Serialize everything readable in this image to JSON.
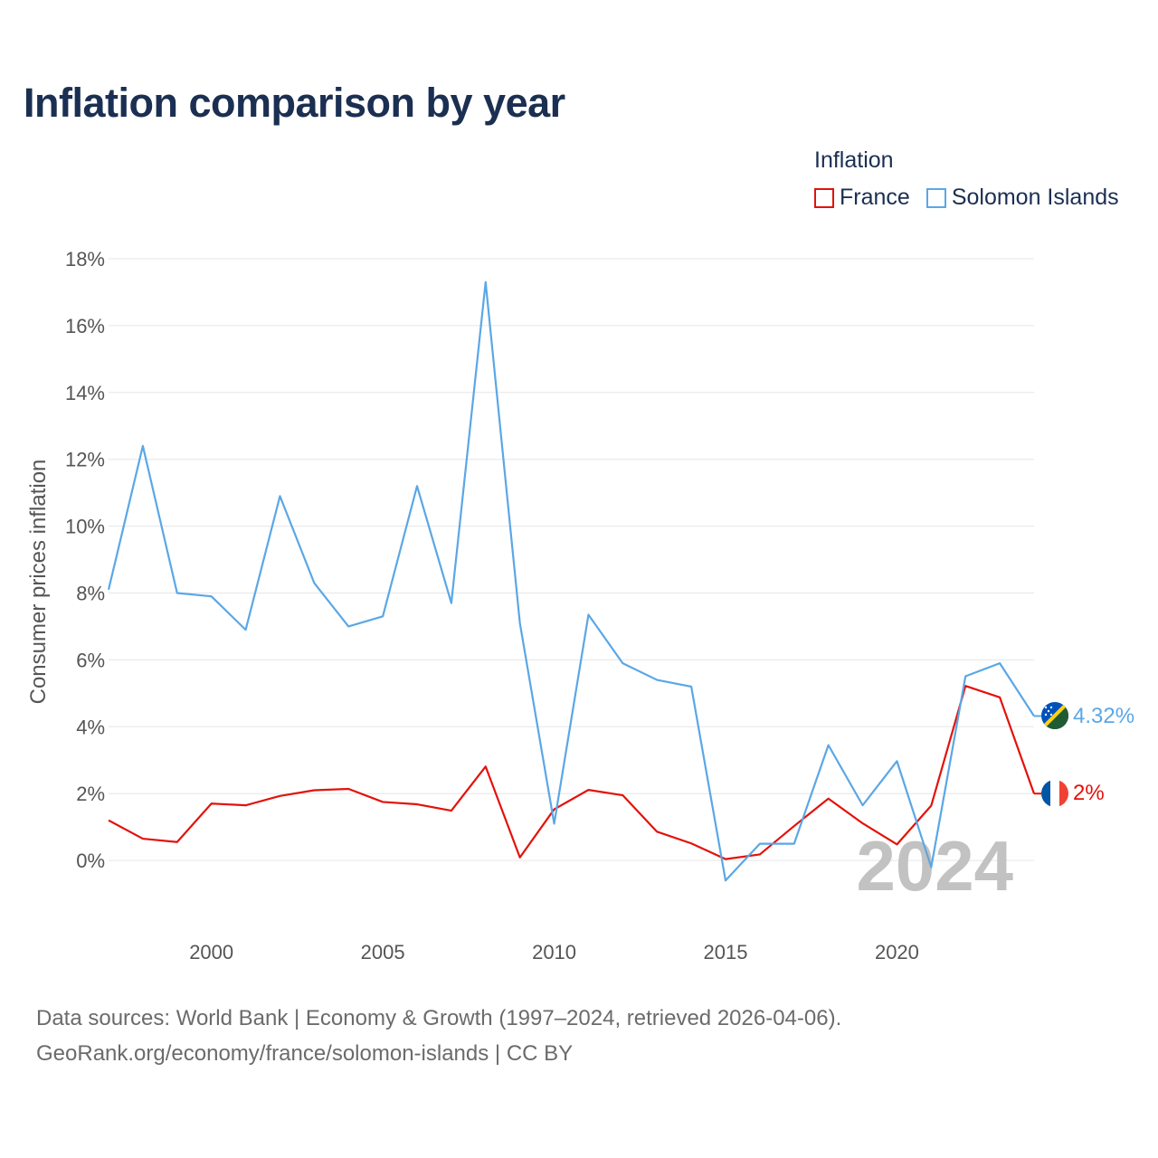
{
  "header": {
    "title": "Inflation comparison by year"
  },
  "legend": {
    "title": "Inflation"
  },
  "footer": {
    "line1": "Data sources: World Bank | Economy & Growth (1997–2024, retrieved 2026-04-06).",
    "line2": "GeoRank.org/economy/france/solomon-islands | CC BY"
  },
  "chart_data": {
    "type": "line",
    "title": "Inflation comparison by year",
    "xlabel": "",
    "ylabel": "Consumer prices inflation",
    "x": [
      1997,
      1998,
      1999,
      2000,
      2001,
      2002,
      2003,
      2004,
      2005,
      2006,
      2007,
      2008,
      2009,
      2010,
      2011,
      2012,
      2013,
      2014,
      2015,
      2016,
      2017,
      2018,
      2019,
      2020,
      2021,
      2022,
      2023,
      2024
    ],
    "xlim": [
      1997,
      2024
    ],
    "ylim": [
      -2,
      18
    ],
    "x_ticks": [
      "2000",
      "2005",
      "2010",
      "2015",
      "2020"
    ],
    "y_ticks": [
      "0%",
      "2%",
      "4%",
      "6%",
      "8%",
      "10%",
      "12%",
      "14%",
      "16%",
      "18%"
    ],
    "grid": true,
    "legend_position": "top-right",
    "watermark_year": "2024",
    "series": [
      {
        "name": "France",
        "color": "#e3120b",
        "flag": "france-flag",
        "end_label": "2%",
        "values": [
          1.2,
          0.65,
          0.55,
          1.7,
          1.65,
          1.93,
          2.1,
          2.14,
          1.75,
          1.68,
          1.49,
          2.81,
          0.09,
          1.53,
          2.11,
          1.95,
          0.86,
          0.51,
          0.04,
          0.18,
          1.03,
          1.85,
          1.11,
          0.48,
          1.64,
          5.22,
          4.88,
          2.0
        ]
      },
      {
        "name": "Solomon Islands",
        "color": "#5aa7e6",
        "flag": "solomon-islands-flag",
        "end_label": "4.32%",
        "values": [
          8.1,
          12.4,
          8.0,
          7.9,
          6.9,
          10.9,
          8.3,
          7.0,
          7.3,
          11.2,
          7.7,
          17.3,
          7.1,
          1.1,
          7.35,
          5.9,
          5.4,
          5.2,
          -0.6,
          0.5,
          0.5,
          3.45,
          1.65,
          2.97,
          -0.2,
          5.51,
          5.9,
          4.32
        ]
      }
    ]
  }
}
